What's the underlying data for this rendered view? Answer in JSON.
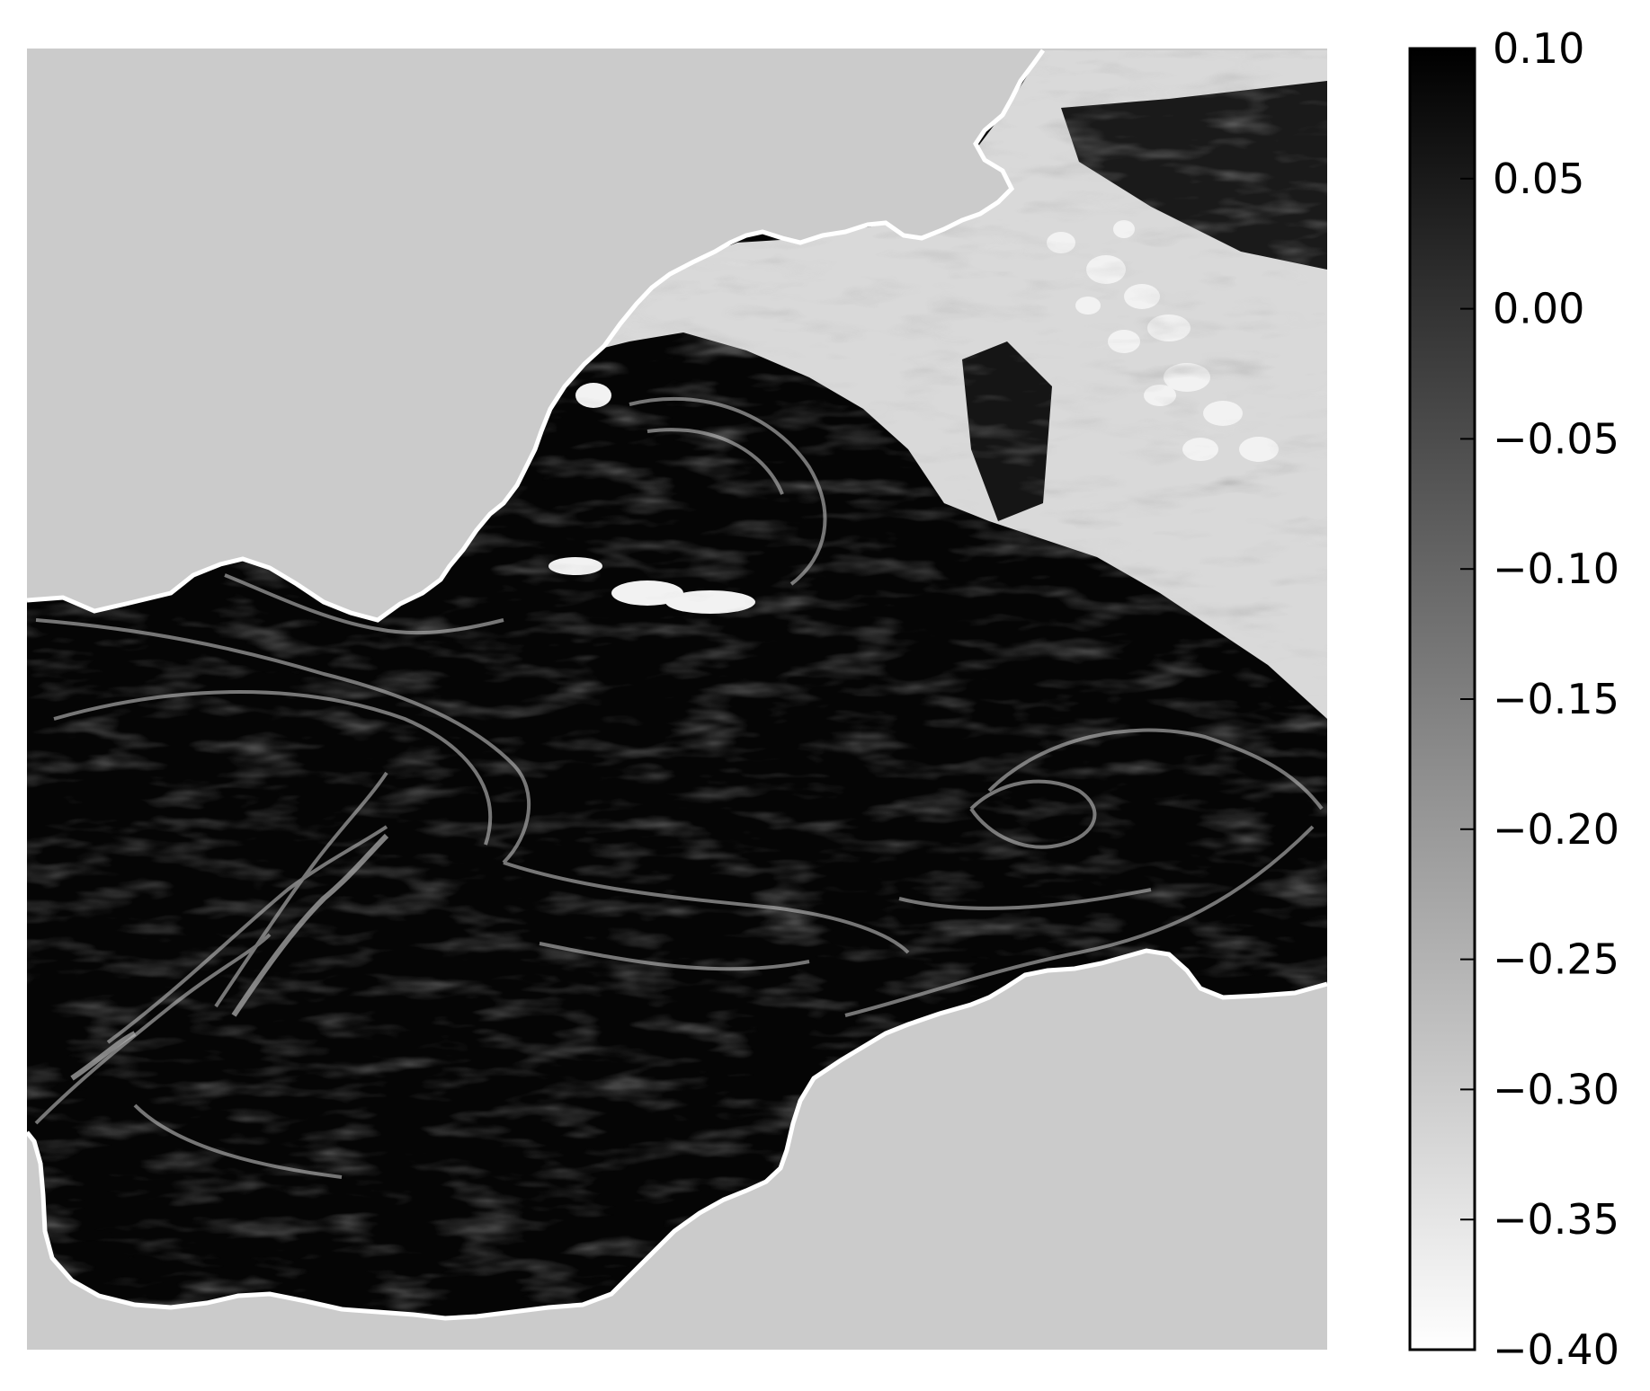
{
  "chart_data": {
    "type": "heatmap",
    "title": "",
    "xlabel": "",
    "ylabel": "",
    "colormap": "greys",
    "colorbar": {
      "min": -0.4,
      "max": 0.1,
      "ticks": [
        0.1,
        0.05,
        0.0,
        -0.05,
        -0.1,
        -0.15,
        -0.2,
        -0.25,
        -0.3,
        -0.35,
        -0.4
      ],
      "tick_labels": [
        "0.10",
        "0.05",
        "0.00",
        "−0.05",
        "−0.10",
        "−0.15",
        "−0.20",
        "−0.25",
        "−0.30",
        "−0.35",
        "−0.40"
      ],
      "low_color": "#ffffff",
      "high_color": "#000000",
      "placement": "right"
    },
    "land_color": "#cbcbcb",
    "grid": false,
    "axes_ticks": false
  }
}
